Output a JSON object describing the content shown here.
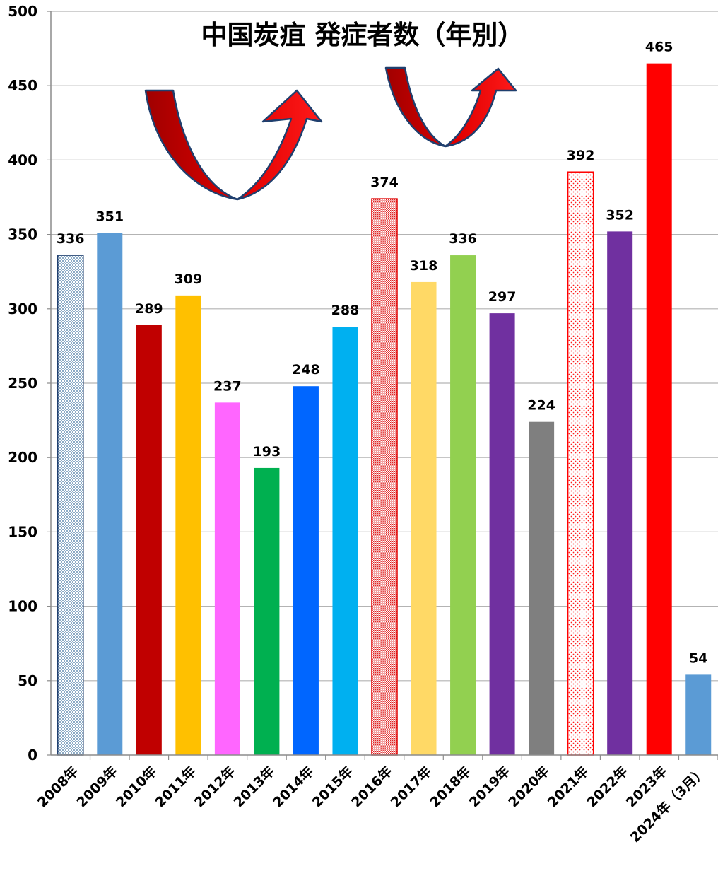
{
  "chart_data": {
    "type": "bar",
    "title": "中国炭疽 発症者数（年別）",
    "xlabel": "",
    "ylabel": "",
    "ylim": [
      0,
      500
    ],
    "y_ticks": [
      0,
      50,
      100,
      150,
      200,
      250,
      300,
      350,
      400,
      450,
      500
    ],
    "grid": true,
    "legend": "none",
    "categories": [
      "2008年",
      "2009年",
      "2010年",
      "2011年",
      "2012年",
      "2013年",
      "2014年",
      "2015年",
      "2016年",
      "2017年",
      "2018年",
      "2019年",
      "2020年",
      "2021年",
      "2022年",
      "2023年",
      "2024年（3月）"
    ],
    "values": [
      336,
      351,
      289,
      309,
      237,
      193,
      248,
      288,
      374,
      318,
      336,
      297,
      224,
      392,
      352,
      465,
      54
    ],
    "bar_colors": [
      "#dbe9f6",
      "#5b9bd5",
      "#c00000",
      "#ffc000",
      "#ff66ff",
      "#00b050",
      "#0066ff",
      "#00b0f0",
      "#ffffff",
      "#ffd966",
      "#92d050",
      "#7030a0",
      "#7f7f7f",
      "#ffffff",
      "#7030a0",
      "#ff0000",
      "#5b9bd5"
    ],
    "bar_patterns": [
      "dots-blue",
      "",
      "",
      "",
      "",
      "",
      "",
      "",
      "dense-red",
      "",
      "",
      "",
      "",
      "dots-red",
      "",
      "",
      ""
    ],
    "annotations": [
      "u-turn-arrow-icon",
      "u-turn-arrow-icon"
    ]
  }
}
